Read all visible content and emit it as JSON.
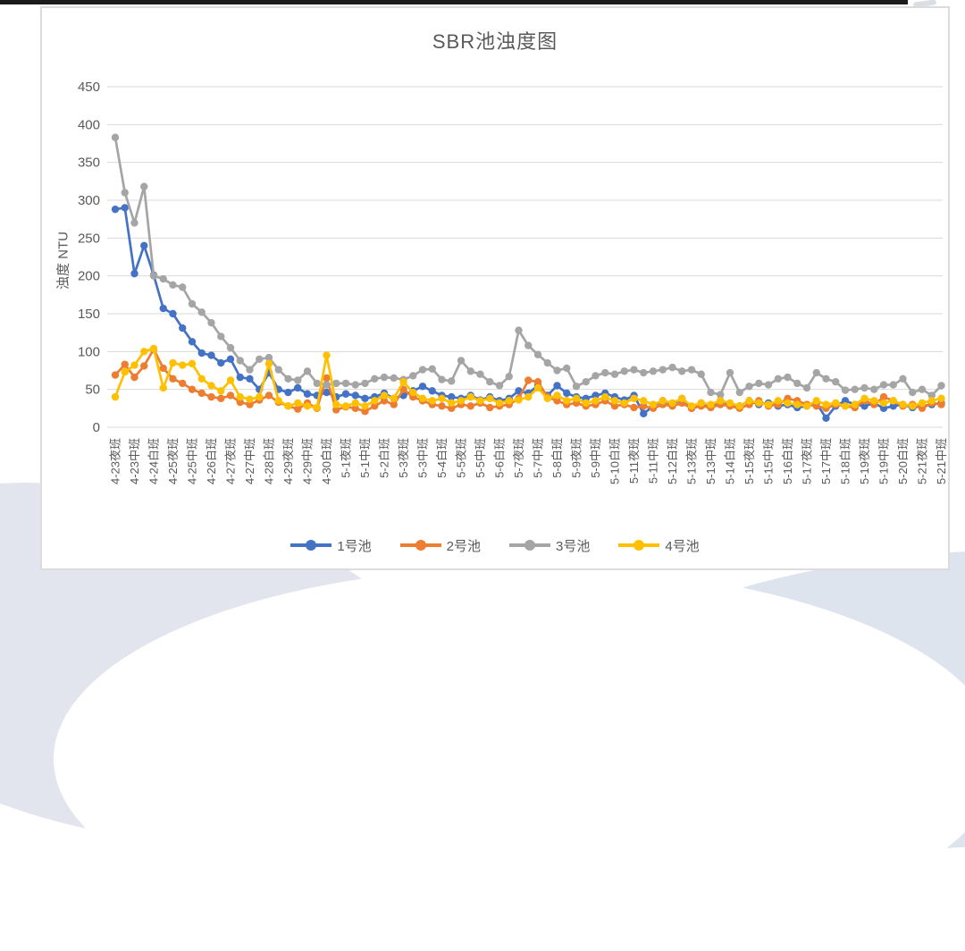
{
  "page": {
    "top_bar_color": "#1b1b1b",
    "panel_border_color": "#dcdcdc",
    "background_wave_color": "#e2e5ee"
  },
  "chart_data": {
    "type": "line",
    "title": "SBR池浊度图",
    "xlabel": "",
    "ylabel": "浊度 NTU",
    "ylim": [
      0,
      450
    ],
    "y_ticks": [
      0,
      50,
      100,
      150,
      200,
      250,
      300,
      350,
      400,
      450
    ],
    "grid": true,
    "legend_position": "bottom",
    "x_tick_interval": 2,
    "marker": "circle",
    "text_color": "#595959",
    "gridline_color": "#d9d9d9",
    "categories": [
      "4-23夜班",
      "4-23白班",
      "4-23中班",
      "4-24夜班",
      "4-24白班",
      "4-24中班",
      "4-25夜班",
      "4-25白班",
      "4-25中班",
      "4-26夜班",
      "4-26白班",
      "4-26中班",
      "4-27夜班",
      "4-27白班",
      "4-27中班",
      "4-28夜班",
      "4-28白班",
      "4-28中班",
      "4-29夜班",
      "4-29白班",
      "4-29中班",
      "4-30夜班",
      "4-30白班",
      "4-30中班",
      "5-1夜班",
      "5-1白班",
      "5-1中班",
      "5-2夜班",
      "5-2白班",
      "5-2中班",
      "5-3夜班",
      "5-3白班",
      "5-3中班",
      "5-4夜班",
      "5-4白班",
      "5-4中班",
      "5-5夜班",
      "5-5白班",
      "5-5中班",
      "5-6夜班",
      "5-6白班",
      "5-6中班",
      "5-7夜班",
      "5-7白班",
      "5-7中班",
      "5-8夜班",
      "5-8白班",
      "5-8中班",
      "5-9夜班",
      "5-9白班",
      "5-9中班",
      "5-10夜班",
      "5-10白班",
      "5-10中班",
      "5-11夜班",
      "5-11白班",
      "5-11中班",
      "5-12夜班",
      "5-12白班",
      "5-12中班",
      "5-13夜班",
      "5-13白班",
      "5-13中班",
      "5-14夜班",
      "5-14白班",
      "5-14中班",
      "5-15夜班",
      "5-15白班",
      "5-15中班",
      "5-16夜班",
      "5-16白班",
      "5-16中班",
      "5-17夜班",
      "5-17白班",
      "5-17中班",
      "5-18夜班",
      "5-18白班",
      "5-18中班",
      "5-19夜班",
      "5-19白班",
      "5-19中班",
      "5-20夜班",
      "5-20白班",
      "5-20中班",
      "5-21夜班",
      "5-21白班",
      "5-21中班"
    ],
    "series": [
      {
        "name": "1号池",
        "color": "#4472C4",
        "values": [
          288,
          290,
          203,
          240,
          201,
          157,
          150,
          131,
          113,
          98,
          95,
          85,
          90,
          66,
          64,
          50,
          72,
          50,
          46,
          52,
          44,
          42,
          46,
          40,
          44,
          42,
          38,
          40,
          45,
          38,
          42,
          48,
          54,
          48,
          42,
          40,
          38,
          42,
          36,
          40,
          35,
          38,
          48,
          45,
          55,
          42,
          55,
          45,
          40,
          38,
          42,
          45,
          40,
          36,
          42,
          18,
          28,
          35,
          30,
          38,
          25,
          32,
          28,
          35,
          30,
          28,
          35,
          30,
          32,
          28,
          30,
          26,
          28,
          32,
          12,
          28,
          35,
          30,
          28,
          32,
          25,
          28,
          30,
          26,
          28,
          30,
          32
        ]
      },
      {
        "name": "2号池",
        "color": "#ED7D31",
        "values": [
          69,
          83,
          66,
          81,
          103,
          78,
          64,
          58,
          50,
          45,
          40,
          38,
          42,
          33,
          30,
          36,
          42,
          33,
          28,
          24,
          32,
          25,
          65,
          23,
          27,
          25,
          21,
          28,
          35,
          30,
          50,
          40,
          35,
          30,
          28,
          25,
          30,
          28,
          32,
          26,
          28,
          30,
          38,
          62,
          60,
          40,
          35,
          30,
          32,
          28,
          30,
          35,
          28,
          30,
          26,
          28,
          25,
          30,
          28,
          32,
          25,
          28,
          26,
          30,
          28,
          25,
          30,
          35,
          28,
          30,
          38,
          35,
          30,
          28,
          25,
          30,
          28,
          26,
          35,
          30,
          40,
          35,
          28,
          30,
          25,
          32,
          30
        ]
      },
      {
        "name": "3号池",
        "color": "#A5A5A5",
        "values": [
          383,
          310,
          270,
          318,
          200,
          196,
          188,
          185,
          163,
          152,
          138,
          120,
          105,
          88,
          76,
          90,
          92,
          76,
          64,
          62,
          74,
          58,
          56,
          58,
          58,
          56,
          58,
          64,
          66,
          65,
          63,
          68,
          76,
          77,
          63,
          61,
          88,
          74,
          70,
          60,
          55,
          67,
          128,
          108,
          96,
          85,
          75,
          78,
          54,
          60,
          68,
          72,
          70,
          74,
          76,
          72,
          74,
          76,
          79,
          74,
          76,
          70,
          46,
          43,
          72,
          46,
          54,
          58,
          56,
          64,
          66,
          58,
          52,
          72,
          64,
          60,
          49,
          50,
          52,
          50,
          56,
          56,
          64,
          46,
          50,
          42,
          55
        ]
      },
      {
        "name": "4号池",
        "color": "#FFC000",
        "values": [
          40,
          73,
          82,
          100,
          104,
          52,
          85,
          82,
          84,
          64,
          55,
          48,
          62,
          40,
          37,
          40,
          84,
          35,
          28,
          32,
          28,
          26,
          95,
          30,
          28,
          32,
          28,
          35,
          42,
          38,
          60,
          46,
          38,
          35,
          38,
          32,
          35,
          40,
          35,
          38,
          32,
          35,
          36,
          40,
          52,
          38,
          42,
          35,
          38,
          32,
          35,
          40,
          35,
          32,
          38,
          35,
          30,
          35,
          32,
          38,
          28,
          32,
          30,
          35,
          32,
          28,
          35,
          32,
          30,
          35,
          32,
          30,
          28,
          35,
          30,
          32,
          28,
          30,
          38,
          35,
          32,
          35,
          30,
          28,
          32,
          35,
          38
        ]
      }
    ]
  }
}
